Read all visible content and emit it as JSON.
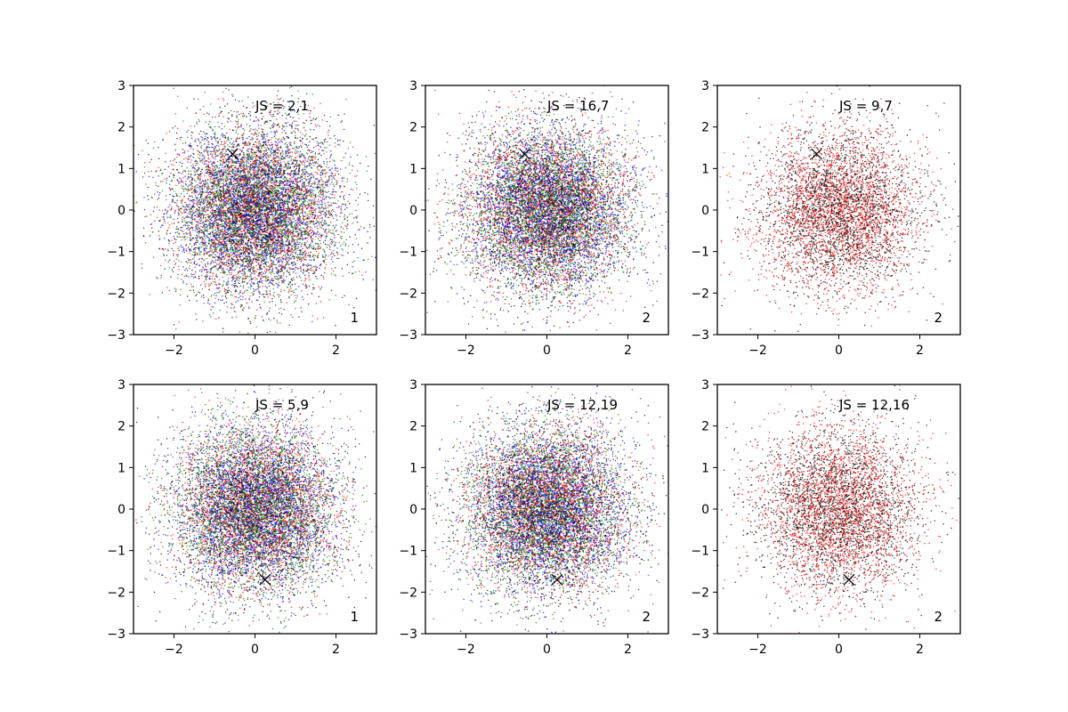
{
  "figure": {
    "tick_values": [
      -2,
      0,
      2
    ],
    "tick_labels": [
      "−2",
      "0",
      "2"
    ],
    "ytick_values": [
      -3,
      -2,
      -1,
      0,
      1,
      2,
      3
    ],
    "ytick_labels": [
      "−3",
      "−2",
      "−1",
      "0",
      "1",
      "2",
      "3"
    ]
  },
  "chart_data": [
    {
      "type": "scatter",
      "annotation": "JS = 2,1",
      "corner_label": "1",
      "xlim": [
        -3,
        3
      ],
      "ylim": [
        -3,
        3
      ],
      "grid": false,
      "point_colors": [
        "#0000ff",
        "#ff0000",
        "#008000",
        "#000000"
      ],
      "approx_points_per_color": 2500,
      "distribution": "standard-normal-like cloud centered at (0, 0)",
      "marker": {
        "label": "×",
        "x": -0.55,
        "y": 1.35
      }
    },
    {
      "type": "scatter",
      "annotation": "JS = 16,7",
      "corner_label": "2",
      "xlim": [
        -3,
        3
      ],
      "ylim": [
        -3,
        3
      ],
      "grid": false,
      "point_colors": [
        "#0000ff",
        "#ff0000",
        "#008000",
        "#000000"
      ],
      "approx_points_per_color": 2500,
      "distribution": "standard-normal-like cloud centered at (0, 0)",
      "marker": {
        "label": "×",
        "x": -0.55,
        "y": 1.35
      }
    },
    {
      "type": "scatter",
      "annotation": "JS = 9,7",
      "corner_label": "2",
      "xlim": [
        -3,
        3
      ],
      "ylim": [
        -3,
        3
      ],
      "grid": false,
      "point_colors": [
        "#ff0000",
        "#000000"
      ],
      "approx_points_per_color": 2500,
      "distribution": "standard-normal-like cloud centered at (0, 0)",
      "marker": {
        "label": "×",
        "x": -0.55,
        "y": 1.35
      }
    },
    {
      "type": "scatter",
      "annotation": "JS = 5,9",
      "corner_label": "1",
      "xlim": [
        -3,
        3
      ],
      "ylim": [
        -3,
        3
      ],
      "grid": false,
      "point_colors": [
        "#0000ff",
        "#ff0000",
        "#008000",
        "#000000"
      ],
      "approx_points_per_color": 2500,
      "distribution": "standard-normal-like cloud centered at (0, 0)",
      "marker": {
        "label": "×",
        "x": 0.25,
        "y": -1.7
      }
    },
    {
      "type": "scatter",
      "annotation": "JS = 12,19",
      "corner_label": "2",
      "xlim": [
        -3,
        3
      ],
      "ylim": [
        -3,
        3
      ],
      "grid": false,
      "point_colors": [
        "#0000ff",
        "#ff0000",
        "#008000",
        "#000000"
      ],
      "approx_points_per_color": 2500,
      "distribution": "standard-normal-like cloud centered at (0, 0)",
      "marker": {
        "label": "×",
        "x": 0.25,
        "y": -1.7
      }
    },
    {
      "type": "scatter",
      "annotation": "JS = 12,16",
      "corner_label": "2",
      "xlim": [
        -3,
        3
      ],
      "ylim": [
        -3,
        3
      ],
      "grid": false,
      "point_colors": [
        "#ff0000",
        "#000000"
      ],
      "approx_points_per_color": 2500,
      "distribution": "standard-normal-like cloud centered at (0, 0)",
      "marker": {
        "label": "×",
        "x": 0.25,
        "y": -1.7
      }
    }
  ]
}
